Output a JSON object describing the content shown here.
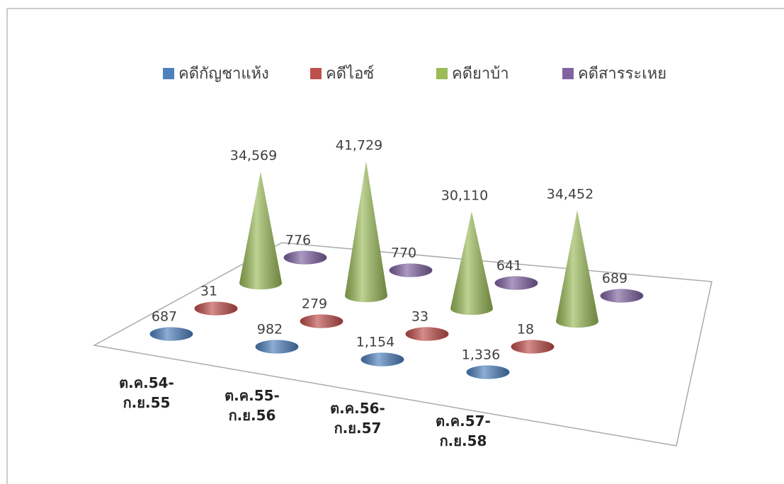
{
  "chart_data": {
    "type": "cone3d",
    "categories": [
      "ต.ค.54- ก.ย.55",
      "ต.ค.55- ก.ย.56",
      "ต.ค.56- ก.ย.57",
      "ต.ค.57- ก.ย.58"
    ],
    "legend": "top",
    "series": [
      {
        "name": "คดีกัญชาแห้ง",
        "color": "#4f81bd",
        "values": [
          687,
          982,
          1154,
          1336
        ],
        "value_labels": [
          "687",
          "982",
          "1,154",
          "1,336"
        ]
      },
      {
        "name": "คดีไอซ์",
        "color": "#c0504d",
        "values": [
          31,
          279,
          33,
          18
        ],
        "value_labels": [
          "31",
          "279",
          "33",
          "18"
        ]
      },
      {
        "name": "คดียาบ้า",
        "color": "#9bbb59",
        "values": [
          34569,
          41729,
          30110,
          34452
        ],
        "value_labels": [
          "34,569",
          "41,729",
          "30,110",
          "34,452"
        ]
      },
      {
        "name": "คดีสารระเหย",
        "color": "#8064a2",
        "values": [
          776,
          770,
          641,
          689
        ],
        "value_labels": [
          "776",
          "770",
          "641",
          "689"
        ]
      }
    ]
  }
}
